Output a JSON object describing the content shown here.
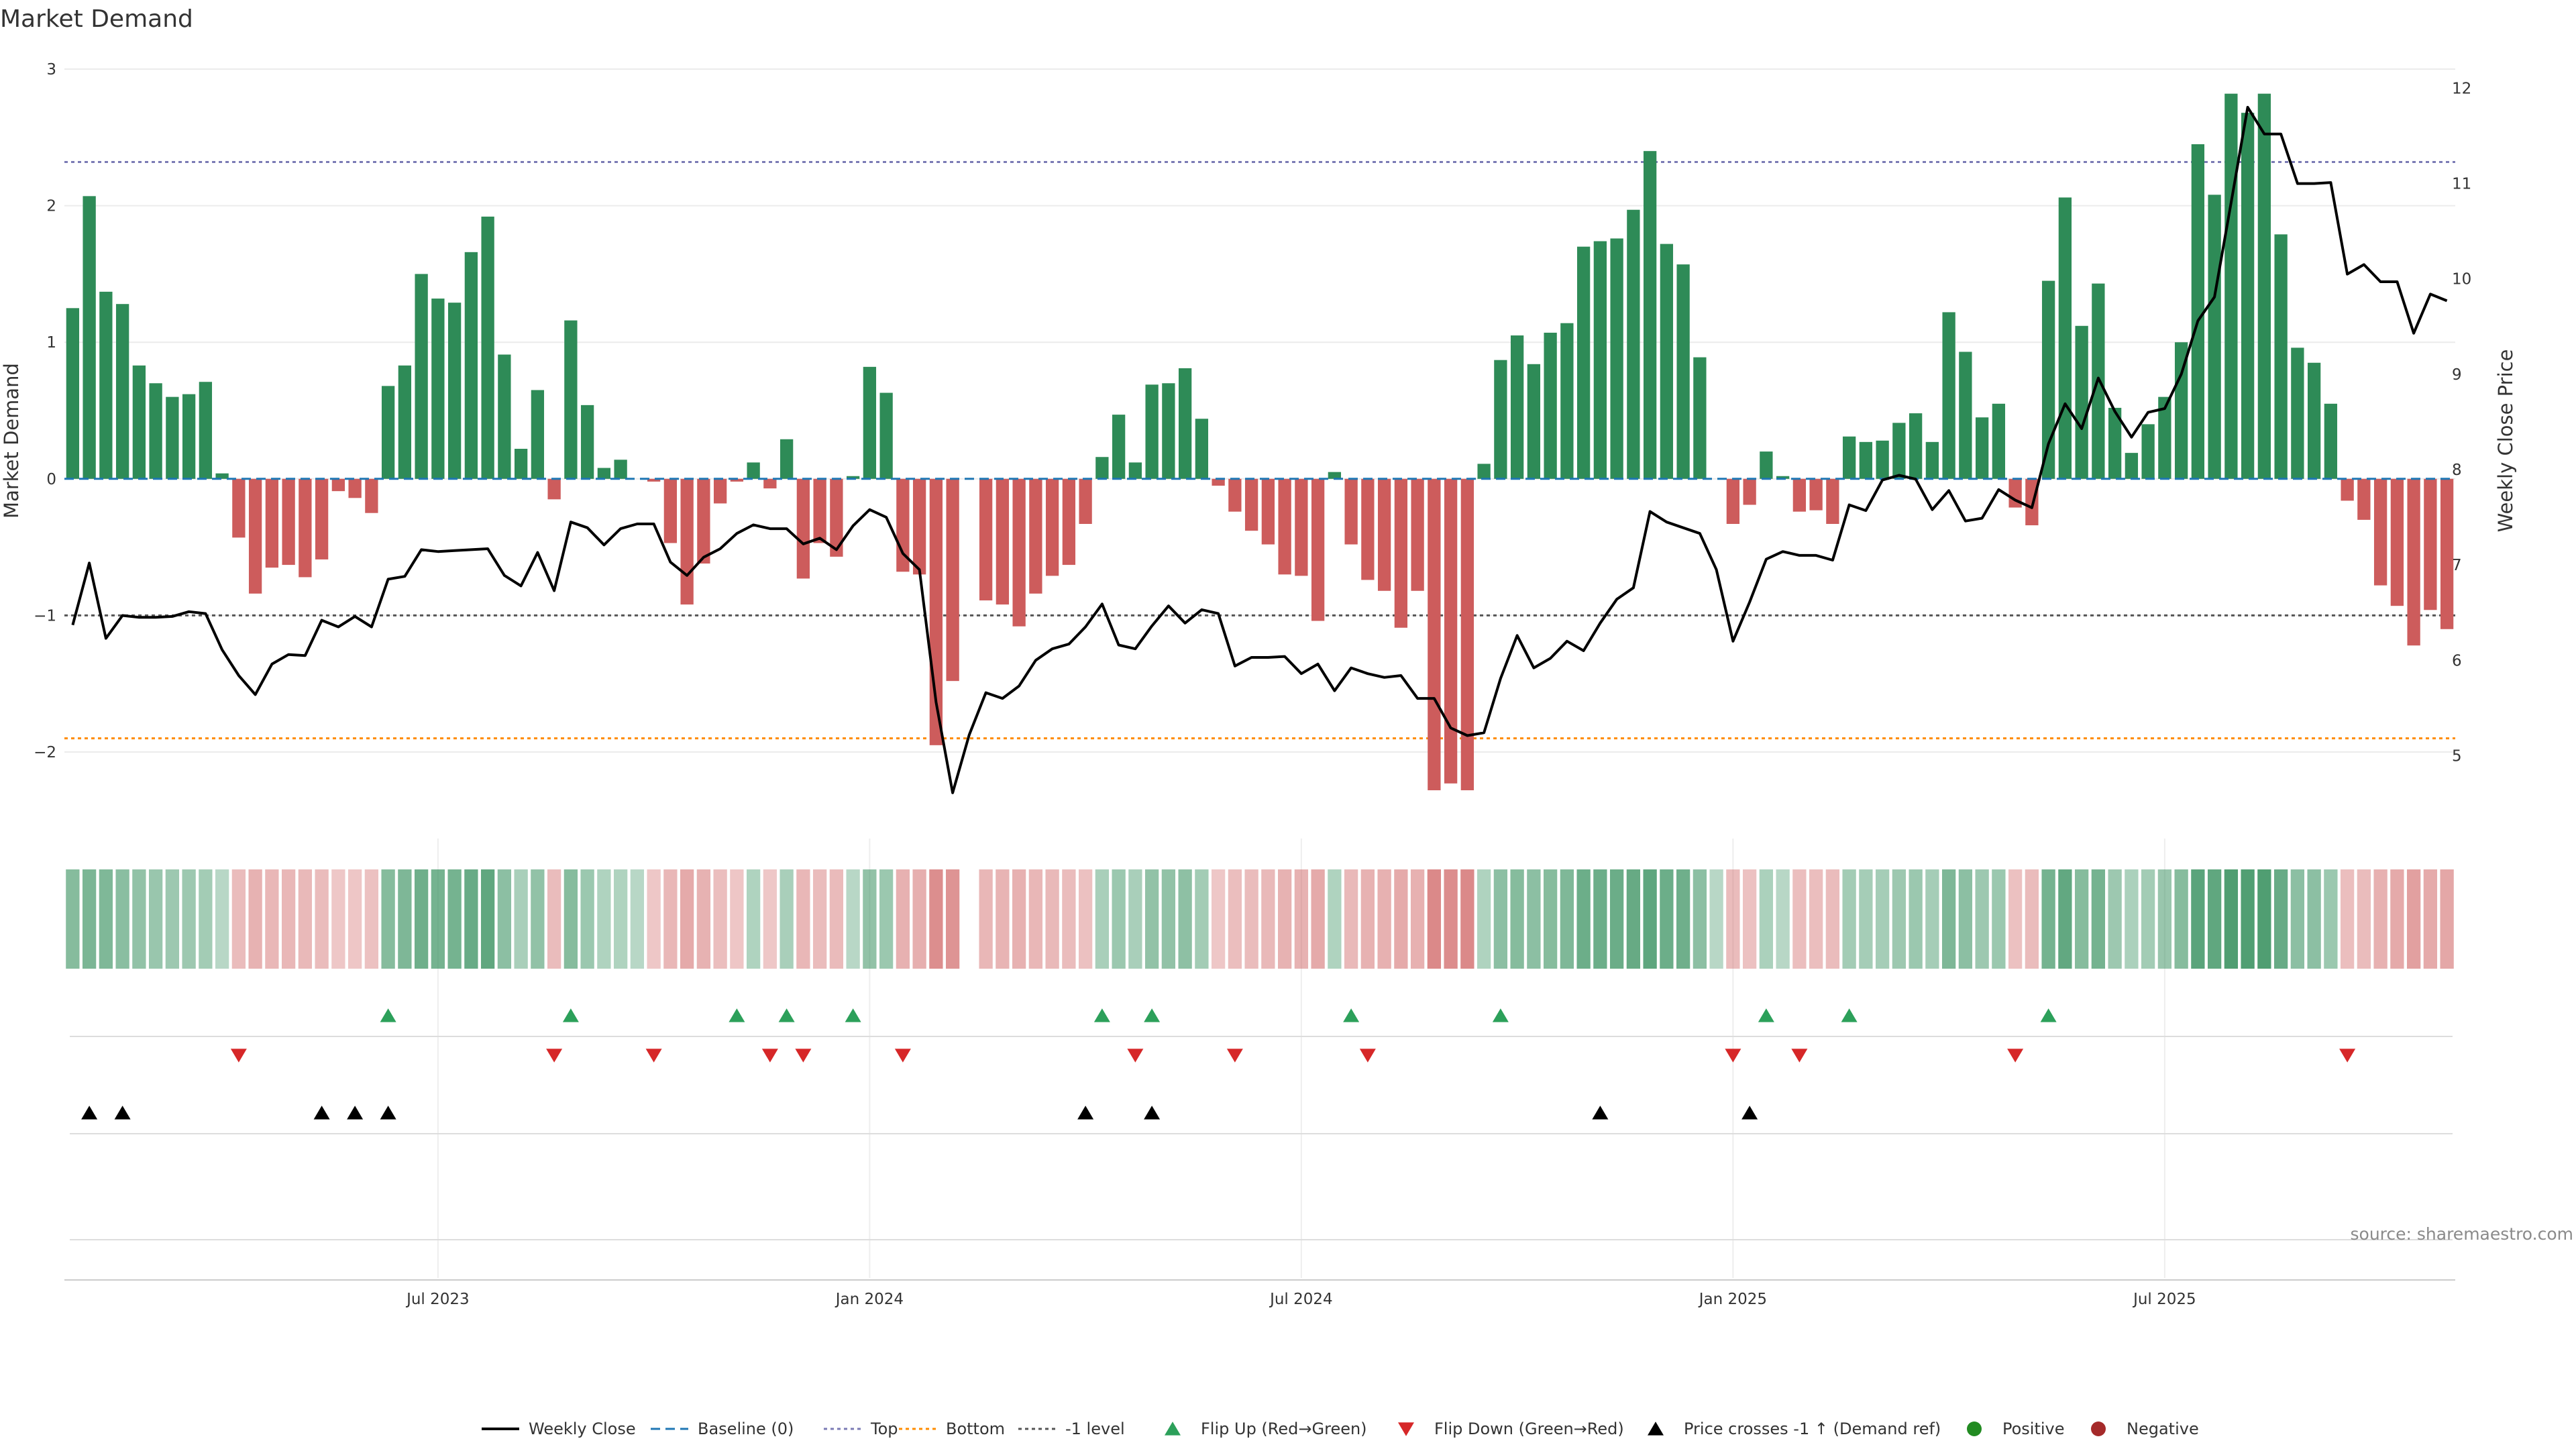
{
  "chart_data": {
    "type": "bar",
    "title": "Market Demand",
    "ylabel_left": "Market Demand",
    "ylabel_right": "Weekly Close Price",
    "ylim_left": [
      -2.55,
      3.0
    ],
    "ylim_right": [
      4.25,
      12.2
    ],
    "yticks_left": [
      {
        "v": 3,
        "t": "3"
      },
      {
        "v": 2,
        "t": "2"
      },
      {
        "v": 1,
        "t": "1"
      },
      {
        "v": 0,
        "t": "0"
      },
      {
        "v": -1,
        "t": "−1"
      },
      {
        "v": -2,
        "t": "−2"
      }
    ],
    "yticks_right": [
      {
        "v": 12,
        "t": "12"
      },
      {
        "v": 11,
        "t": "11"
      },
      {
        "v": 10,
        "t": "10"
      },
      {
        "v": 9,
        "t": "9"
      },
      {
        "v": 8,
        "t": "8"
      },
      {
        "v": 7,
        "t": "7"
      },
      {
        "v": 6,
        "t": "6"
      },
      {
        "v": 5,
        "t": "5"
      }
    ],
    "xticks": [
      {
        "i": 22,
        "t": "Jul 2023"
      },
      {
        "i": 48,
        "t": "Jan 2024"
      },
      {
        "i": 74,
        "t": "Jul 2024"
      },
      {
        "i": 100,
        "t": "Jan 2025"
      },
      {
        "i": 126,
        "t": "Jul 2025"
      }
    ],
    "reference_lines": {
      "top": 2.32,
      "bottom": -1.9,
      "minus_one": -1.0
    },
    "colors": {
      "positive": "#2e8b57",
      "negative": "#cd5c5c",
      "price": "#000000",
      "baseline": "#1f77b4",
      "top": "#7b7bb5",
      "bottom": "#ff8c00",
      "minus_one": "#555555",
      "flip_up": "#2ca05a",
      "flip_down": "#d62728",
      "cross": "#000000",
      "dot_pos": "#228b22",
      "dot_neg": "#a52a2a"
    },
    "demand": [
      1.25,
      2.07,
      1.37,
      1.28,
      0.83,
      0.7,
      0.6,
      0.62,
      0.71,
      0.04,
      -0.43,
      -0.84,
      -0.65,
      -0.63,
      -0.72,
      -0.59,
      -0.09,
      -0.14,
      -0.25,
      0.68,
      0.83,
      1.5,
      1.32,
      1.29,
      1.66,
      1.92,
      0.91,
      0.22,
      0.65,
      -0.15,
      1.16,
      0.54,
      0.08,
      0.14,
      0.0,
      -0.02,
      -0.47,
      -0.92,
      -0.62,
      -0.18,
      -0.02,
      0.12,
      -0.07,
      0.29,
      -0.73,
      -0.47,
      -0.57,
      0.02,
      0.82,
      0.63,
      -0.68,
      -0.7,
      -1.95,
      -1.48,
      0.0,
      -0.89,
      -0.92,
      -1.08,
      -0.84,
      -0.71,
      -0.63,
      -0.33,
      0.16,
      0.47,
      0.12,
      0.69,
      0.7,
      0.81,
      0.44,
      -0.05,
      -0.24,
      -0.38,
      -0.48,
      -0.7,
      -0.71,
      -1.04,
      0.05,
      -0.48,
      -0.74,
      -0.82,
      -1.09,
      -0.82,
      -2.28,
      -2.23,
      -2.28,
      0.11,
      0.87,
      1.05,
      0.84,
      1.07,
      1.14,
      1.7,
      1.74,
      1.76,
      1.97,
      2.4,
      1.72,
      1.57,
      0.89,
      0.0,
      -0.33,
      -0.19,
      0.2,
      0.02,
      -0.24,
      -0.23,
      -0.33,
      0.31,
      0.27,
      0.28,
      0.41,
      0.48,
      0.27,
      1.22,
      0.93,
      0.45,
      0.55,
      -0.21,
      -0.34,
      1.45,
      2.06,
      1.12,
      1.43,
      0.52,
      0.19,
      0.4,
      0.6,
      1.0,
      2.45,
      2.08,
      2.82,
      2.68,
      2.82,
      1.79,
      0.96,
      0.85,
      0.55,
      -0.16,
      -0.3,
      -0.78,
      -0.93,
      -1.22,
      -0.96,
      -1.1
    ],
    "price": [
      6.37,
      7.02,
      6.23,
      6.47,
      6.45,
      6.45,
      6.46,
      6.51,
      6.49,
      6.11,
      5.84,
      5.64,
      5.96,
      6.06,
      6.05,
      6.42,
      6.35,
      6.46,
      6.35,
      6.85,
      6.88,
      7.16,
      7.14,
      7.15,
      7.16,
      7.17,
      6.89,
      6.78,
      7.13,
      6.73,
      7.45,
      7.39,
      7.21,
      7.38,
      7.43,
      7.43,
      7.03,
      6.89,
      7.08,
      7.17,
      7.33,
      7.42,
      7.38,
      7.38,
      7.22,
      7.28,
      7.16,
      7.41,
      7.58,
      7.5,
      7.12,
      6.95,
      5.56,
      4.61,
      5.22,
      5.66,
      5.6,
      5.73,
      6.0,
      6.12,
      6.17,
      6.35,
      6.59,
      6.16,
      6.12,
      6.36,
      6.57,
      6.39,
      6.53,
      6.49,
      5.94,
      6.03,
      6.03,
      6.04,
      5.86,
      5.96,
      5.68,
      5.92,
      5.86,
      5.82,
      5.84,
      5.6,
      5.6,
      5.29,
      5.21,
      5.24,
      5.81,
      6.26,
      5.92,
      6.02,
      6.2,
      6.1,
      6.39,
      6.64,
      6.76,
      7.56,
      7.45,
      7.39,
      7.33,
      6.95,
      6.2,
      6.61,
      7.06,
      7.14,
      7.1,
      7.1,
      7.05,
      7.63,
      7.57,
      7.89,
      7.94,
      7.9,
      7.58,
      7.78,
      7.46,
      7.49,
      7.79,
      7.68,
      7.6,
      8.27,
      8.69,
      8.43,
      8.96,
      8.61,
      8.34,
      8.6,
      8.64,
      9.0,
      9.56,
      9.81,
      10.8,
      11.8,
      11.52,
      11.52,
      11.0,
      11.0,
      11.01,
      10.05,
      10.15,
      9.97,
      9.97,
      9.43,
      9.84,
      9.77
    ],
    "heat_strip": [
      0.55,
      0.62,
      0.58,
      0.52,
      0.45,
      0.42,
      0.38,
      0.38,
      0.35,
      0.2,
      -0.3,
      -0.38,
      -0.35,
      -0.34,
      -0.33,
      -0.3,
      -0.2,
      -0.22,
      -0.25,
      0.55,
      0.6,
      0.7,
      0.65,
      0.65,
      0.75,
      0.8,
      0.5,
      0.3,
      0.45,
      -0.3,
      0.55,
      0.4,
      0.25,
      0.25,
      0.2,
      -0.2,
      -0.35,
      -0.45,
      -0.38,
      -0.28,
      -0.22,
      0.25,
      -0.2,
      0.3,
      -0.35,
      -0.3,
      -0.32,
      0.2,
      0.45,
      0.4,
      -0.4,
      -0.42,
      -0.7,
      -0.65,
      null,
      -0.35,
      -0.37,
      -0.4,
      -0.35,
      -0.33,
      -0.3,
      -0.25,
      0.3,
      0.4,
      0.3,
      0.45,
      0.45,
      0.48,
      0.35,
      -0.2,
      -0.28,
      -0.3,
      -0.33,
      -0.38,
      -0.38,
      -0.45,
      0.25,
      -0.33,
      -0.38,
      -0.4,
      -0.45,
      -0.4,
      -0.75,
      -0.72,
      -0.75,
      0.25,
      0.5,
      0.55,
      0.5,
      0.55,
      0.58,
      0.72,
      0.72,
      0.73,
      0.76,
      0.82,
      0.72,
      0.7,
      0.5,
      0.2,
      -0.3,
      -0.25,
      0.28,
      0.2,
      -0.28,
      -0.28,
      -0.3,
      0.35,
      0.33,
      0.33,
      0.38,
      0.4,
      0.33,
      0.6,
      0.5,
      0.38,
      0.4,
      -0.25,
      -0.3,
      0.65,
      0.78,
      0.55,
      0.65,
      0.38,
      0.28,
      0.35,
      0.42,
      0.55,
      0.85,
      0.8,
      0.92,
      0.9,
      0.92,
      0.75,
      0.5,
      0.5,
      0.4,
      -0.28,
      -0.3,
      -0.4,
      -0.45,
      -0.55,
      -0.45,
      -0.48
    ],
    "flip_up_idx": [
      19,
      30,
      40,
      43,
      47,
      62,
      65,
      77,
      86,
      102,
      107,
      119
    ],
    "flip_down_idx": [
      10,
      29,
      35,
      42,
      44,
      50,
      64,
      70,
      78,
      100,
      104,
      117,
      137
    ],
    "price_cross_idx": [
      1,
      3,
      15,
      17,
      19,
      61,
      65,
      92,
      101
    ],
    "legend": [
      {
        "key": "line",
        "label": "Weekly Close"
      },
      {
        "key": "dash",
        "label": "Baseline (0)"
      },
      {
        "key": "dotp",
        "label": "Top"
      },
      {
        "key": "doto",
        "label": "Bottom"
      },
      {
        "key": "dotg",
        "label": "-1 level"
      },
      {
        "key": "up",
        "label": "Flip Up (Red→Green)"
      },
      {
        "key": "down",
        "label": "Flip Down (Green→Red)"
      },
      {
        "key": "cross",
        "label": "Price crosses -1 ↑ (Demand ref)"
      },
      {
        "key": "pos",
        "label": "Positive"
      },
      {
        "key": "neg",
        "label": "Negative"
      }
    ],
    "source": "source: sharemaestro.com"
  }
}
